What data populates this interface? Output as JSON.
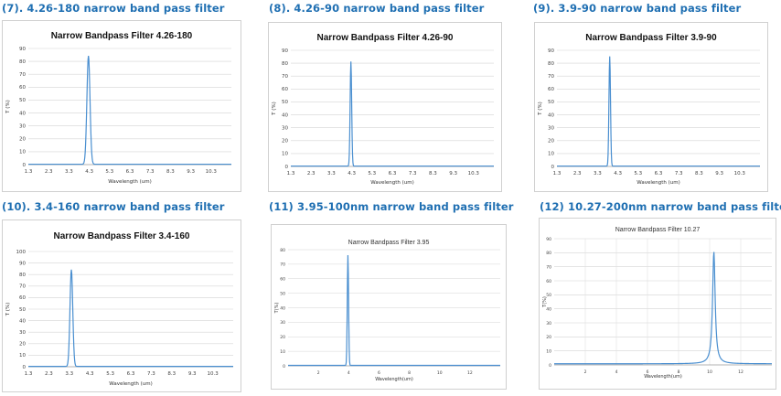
{
  "colors": {
    "heading": "#1f6fb2",
    "line": "#4a8fd0",
    "grid": "#d4d4d4"
  },
  "headings": [
    "(7). 4.26-180 narrow band pass filter",
    "(8). 4.26-90 narrow band pass filter",
    "(9). 3.9-90 narrow band pass filter",
    "(10). 3.4-160 narrow band pass filter",
    "(11) 3.95-100nm narrow band pass filter",
    "(12) 10.27-200nm narrow band pass filter"
  ],
  "chart_data": [
    {
      "type": "line",
      "title": "Narrow Bandpass Filter 4.26-180",
      "xlabel": "Wavelength (um)",
      "ylabel": "T (%)",
      "x_ticks": [
        "1.3",
        "2.3",
        "3.3",
        "4.3",
        "5.3",
        "6.3",
        "7.3",
        "8.3",
        "9.3",
        "10.3"
      ],
      "y_ticks": [
        0,
        10,
        20,
        30,
        40,
        50,
        60,
        70,
        80,
        90
      ],
      "xlim": [
        1.3,
        11.3
      ],
      "ylim": [
        0,
        90
      ],
      "grid": "horizontal",
      "peak": {
        "center": 4.26,
        "fwhm": 0.18,
        "max": 84
      }
    },
    {
      "type": "line",
      "title": "Narrow Bandpass Filter 4.26-90",
      "xlabel": "Wavelength (um)",
      "ylabel": "T (%)",
      "x_ticks": [
        "1.3",
        "2.3",
        "3.3",
        "4.3",
        "5.3",
        "6.3",
        "7.3",
        "8.3",
        "9.3",
        "10.3"
      ],
      "y_ticks": [
        0,
        10,
        20,
        30,
        40,
        50,
        60,
        70,
        80,
        90
      ],
      "xlim": [
        1.3,
        11.3
      ],
      "ylim": [
        0,
        90
      ],
      "grid": "horizontal",
      "peak": {
        "center": 4.26,
        "fwhm": 0.09,
        "max": 81
      }
    },
    {
      "type": "line",
      "title": "Narrow Bandpass Filter 3.9-90",
      "xlabel": "Wavelength (um)",
      "ylabel": "T (%)",
      "x_ticks": [
        "1.3",
        "2.3",
        "3.3",
        "4.3",
        "5.3",
        "6.3",
        "7.3",
        "8.3",
        "9.3",
        "10.3"
      ],
      "y_ticks": [
        0,
        10,
        20,
        30,
        40,
        50,
        60,
        70,
        80,
        90
      ],
      "xlim": [
        1.3,
        11.3
      ],
      "ylim": [
        0,
        90
      ],
      "grid": "horizontal",
      "peak": {
        "center": 3.9,
        "fwhm": 0.09,
        "max": 85
      }
    },
    {
      "type": "line",
      "title": "Narrow Bandpass Filter 3.4-160",
      "xlabel": "Wavelength (um)",
      "ylabel": "T (%)",
      "x_ticks": [
        "1.3",
        "2.3",
        "3.3",
        "4.3",
        "5.3",
        "6.3",
        "7.3",
        "8.3",
        "9.3",
        "10.3"
      ],
      "y_ticks": [
        0,
        10,
        20,
        30,
        40,
        50,
        60,
        70,
        80,
        90,
        100
      ],
      "xlim": [
        1.3,
        11.3
      ],
      "ylim": [
        0,
        100
      ],
      "grid": "horizontal",
      "peak": {
        "center": 3.4,
        "fwhm": 0.16,
        "max": 84
      }
    },
    {
      "type": "line",
      "title": "Narrow Bandpass Filter 3.95",
      "xlabel": "Wavelength(um)",
      "ylabel": "T(%)",
      "x_ticks": [
        "2",
        "4",
        "6",
        "8",
        "10",
        "12"
      ],
      "y_ticks": [
        0,
        10,
        20,
        30,
        40,
        50,
        60,
        70,
        80
      ],
      "xlim": [
        0,
        14
      ],
      "ylim": [
        0,
        80
      ],
      "grid": "horizontal",
      "peak": {
        "center": 3.95,
        "fwhm": 0.1,
        "max": 76
      }
    },
    {
      "type": "line",
      "title": "Narrow Bandpass Filter 10.27",
      "xlabel": "Wavelength(um)",
      "ylabel": "T(%)",
      "x_ticks": [
        "2",
        "4",
        "6",
        "8",
        "10",
        "12"
      ],
      "y_ticks": [
        0,
        10,
        20,
        30,
        40,
        50,
        60,
        70,
        80,
        90
      ],
      "xlim": [
        0,
        14
      ],
      "ylim": [
        0,
        90
      ],
      "grid": "both",
      "peak": {
        "center": 10.27,
        "fwhm": 0.2,
        "max": 80
      }
    }
  ]
}
